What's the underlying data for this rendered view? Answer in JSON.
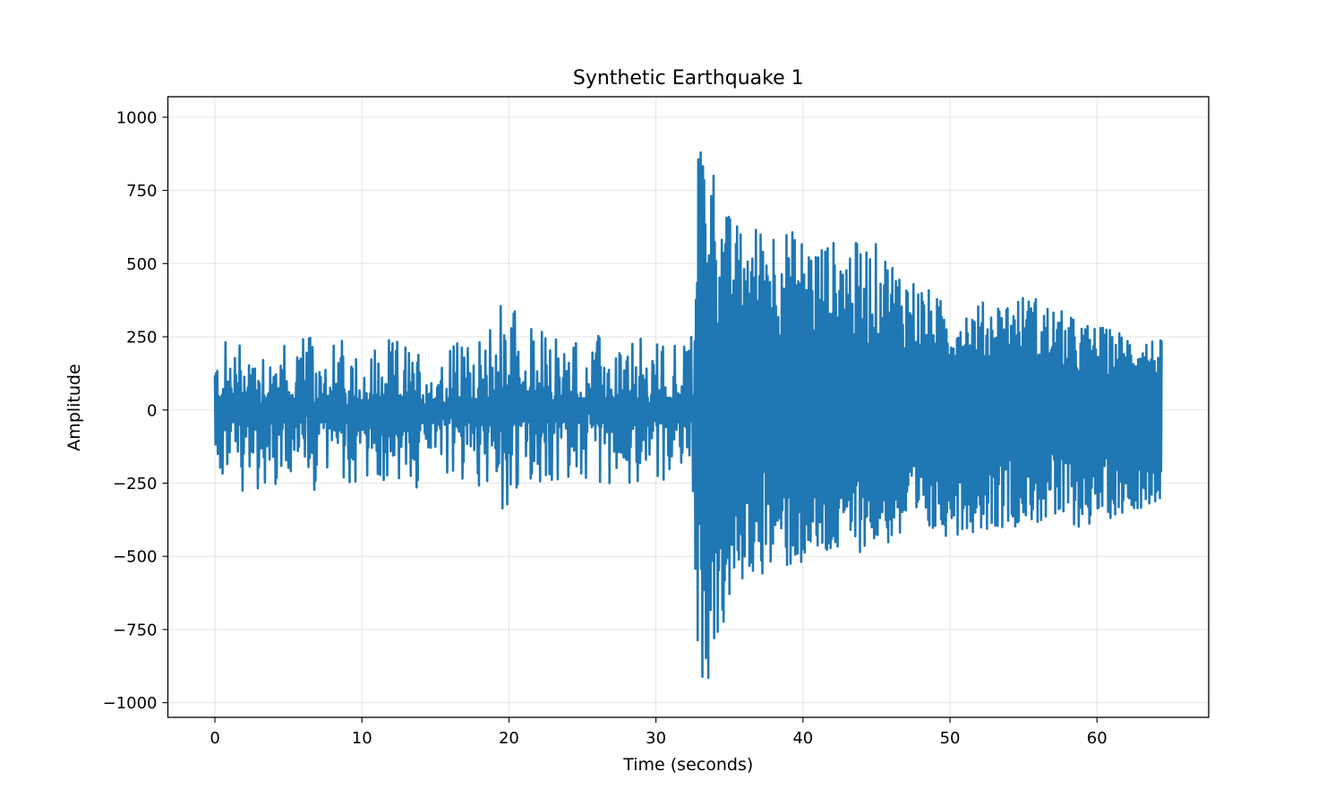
{
  "chart_data": {
    "type": "line",
    "title": "Synthetic Earthquake 1",
    "xlabel": "Time (seconds)",
    "ylabel": "Amplitude",
    "xlim": [
      -3.2,
      67.6
    ],
    "ylim": [
      -1050,
      1070
    ],
    "xticks": [
      0,
      10,
      20,
      30,
      40,
      50,
      60
    ],
    "xtick_labels": [
      "0",
      "10",
      "20",
      "30",
      "40",
      "50",
      "60"
    ],
    "yticks": [
      1000,
      750,
      500,
      250,
      0,
      -250,
      -500,
      -750,
      -1000
    ],
    "ytick_labels": [
      "1000",
      "750",
      "500",
      "250",
      "0",
      "−250",
      "−500",
      "−750",
      "−1000"
    ],
    "grid": true,
    "legend": "none",
    "series": [
      {
        "color": "#1f77b4",
        "x_start": 0,
        "x_end": 64.4,
        "envelope": [
          {
            "t": 0,
            "max": 230,
            "min": -240
          },
          {
            "t": 2,
            "max": 265,
            "min": -280
          },
          {
            "t": 5,
            "max": 255,
            "min": -285
          },
          {
            "t": 10,
            "max": 250,
            "min": -260
          },
          {
            "t": 15,
            "max": 230,
            "min": -285
          },
          {
            "t": 18.5,
            "max": 245,
            "min": -255
          },
          {
            "t": 19.0,
            "max": 355,
            "min": -330
          },
          {
            "t": 19.5,
            "max": 505,
            "min": -395
          },
          {
            "t": 20.0,
            "max": 435,
            "min": -360
          },
          {
            "t": 21,
            "max": 295,
            "min": -260
          },
          {
            "t": 25,
            "max": 265,
            "min": -260
          },
          {
            "t": 30,
            "max": 240,
            "min": -245
          },
          {
            "t": 32.5,
            "max": 280,
            "min": -250
          },
          {
            "t": 32.8,
            "max": 970,
            "min": -910
          },
          {
            "t": 33.5,
            "max": 955,
            "min": -955
          },
          {
            "t": 34.5,
            "max": 700,
            "min": -770
          },
          {
            "t": 36,
            "max": 610,
            "min": -580
          },
          {
            "t": 37.5,
            "max": 660,
            "min": -560
          },
          {
            "t": 40.5,
            "max": 585,
            "min": -535
          },
          {
            "t": 45,
            "max": 570,
            "min": -470
          },
          {
            "t": 50,
            "max": 350,
            "min": -430
          },
          {
            "t": 55.5,
            "max": 400,
            "min": -390
          },
          {
            "t": 59,
            "max": 300,
            "min": -405
          },
          {
            "t": 64.4,
            "max": 240,
            "min": -310
          }
        ]
      }
    ]
  }
}
